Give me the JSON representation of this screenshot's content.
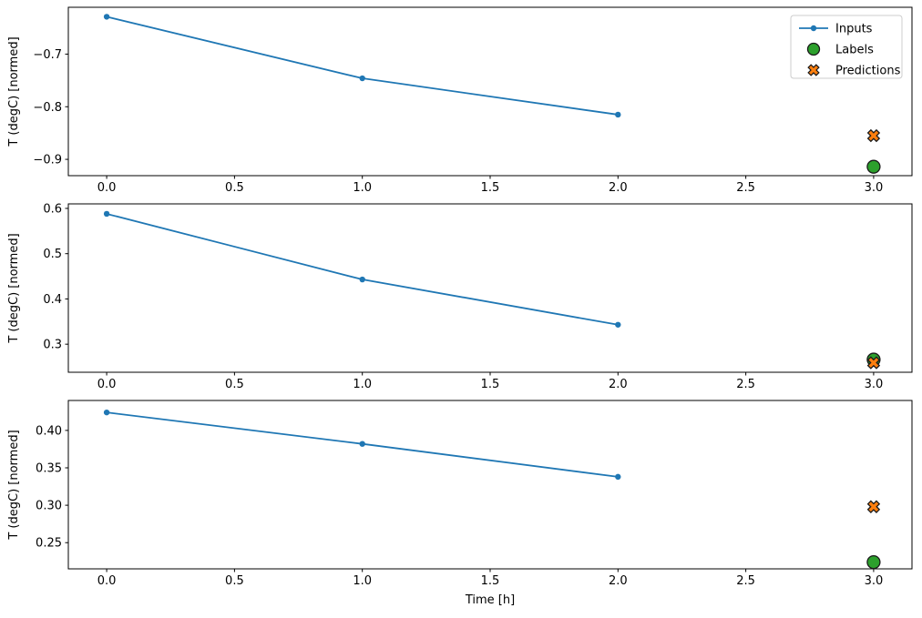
{
  "figure": {
    "background": "#ffffff",
    "xlabel": "Time [h]",
    "ylabel": "T (degC) [normed]"
  },
  "chart_data": [
    {
      "type": "line",
      "title": "",
      "xlabel": "",
      "ylabel": "T (degC) [normed]",
      "xlim": [
        -0.15,
        3.15
      ],
      "ylim": [
        -0.931,
        -0.611
      ],
      "xticks": [
        0.0,
        0.5,
        1.0,
        1.5,
        2.0,
        2.5,
        3.0
      ],
      "xticklabels": [
        "0.0",
        "0.5",
        "1.0",
        "1.5",
        "2.0",
        "2.5",
        "3.0"
      ],
      "yticks": [
        -0.7,
        -0.8,
        -0.9
      ],
      "yticklabels": [
        "−0.7",
        "−0.8",
        "−0.9"
      ],
      "grid": false,
      "legend": {
        "visible": true,
        "position": "upper right"
      },
      "series": [
        {
          "name": "Inputs",
          "kind": "line+marker",
          "marker": "dot",
          "color": "#1f77b4",
          "edge_color": null,
          "x": [
            0,
            1,
            2
          ],
          "y": [
            -0.629,
            -0.746,
            -0.815
          ]
        },
        {
          "name": "Labels",
          "kind": "scatter",
          "marker": "circle",
          "color": "#2ca02c",
          "edge_color": "#1a1a1a",
          "x": [
            3
          ],
          "y": [
            -0.914
          ]
        },
        {
          "name": "Predictions",
          "kind": "scatter",
          "marker": "X",
          "color": "#ff7f0e",
          "edge_color": "#1a1a1a",
          "x": [
            3
          ],
          "y": [
            -0.855
          ]
        }
      ]
    },
    {
      "type": "line",
      "title": "",
      "xlabel": "",
      "ylabel": "T (degC) [normed]",
      "xlim": [
        -0.15,
        3.15
      ],
      "ylim": [
        0.238,
        0.61
      ],
      "xticks": [
        0.0,
        0.5,
        1.0,
        1.5,
        2.0,
        2.5,
        3.0
      ],
      "xticklabels": [
        "0.0",
        "0.5",
        "1.0",
        "1.5",
        "2.0",
        "2.5",
        "3.0"
      ],
      "yticks": [
        0.3,
        0.4,
        0.5,
        0.6
      ],
      "yticklabels": [
        "0.3",
        "0.4",
        "0.5",
        "0.6"
      ],
      "grid": false,
      "legend": {
        "visible": false,
        "position": "upper right"
      },
      "series": [
        {
          "name": "Inputs",
          "kind": "line+marker",
          "marker": "dot",
          "color": "#1f77b4",
          "edge_color": null,
          "x": [
            0,
            1,
            2
          ],
          "y": [
            0.588,
            0.443,
            0.343
          ]
        },
        {
          "name": "Labels",
          "kind": "scatter",
          "marker": "circle",
          "color": "#2ca02c",
          "edge_color": "#1a1a1a",
          "x": [
            3
          ],
          "y": [
            0.266
          ]
        },
        {
          "name": "Predictions",
          "kind": "scatter",
          "marker": "X",
          "color": "#ff7f0e",
          "edge_color": "#1a1a1a",
          "x": [
            3
          ],
          "y": [
            0.259
          ]
        }
      ]
    },
    {
      "type": "line",
      "title": "",
      "xlabel": "Time [h]",
      "ylabel": "T (degC) [normed]",
      "xlim": [
        -0.15,
        3.15
      ],
      "ylim": [
        0.215,
        0.44
      ],
      "xticks": [
        0.0,
        0.5,
        1.0,
        1.5,
        2.0,
        2.5,
        3.0
      ],
      "xticklabels": [
        "0.0",
        "0.5",
        "1.0",
        "1.5",
        "2.0",
        "2.5",
        "3.0"
      ],
      "yticks": [
        0.25,
        0.3,
        0.35,
        0.4
      ],
      "yticklabels": [
        "0.25",
        "0.30",
        "0.35",
        "0.40"
      ],
      "grid": false,
      "legend": {
        "visible": false,
        "position": "upper right"
      },
      "series": [
        {
          "name": "Inputs",
          "kind": "line+marker",
          "marker": "dot",
          "color": "#1f77b4",
          "edge_color": null,
          "x": [
            0,
            1,
            2
          ],
          "y": [
            0.424,
            0.382,
            0.338
          ]
        },
        {
          "name": "Labels",
          "kind": "scatter",
          "marker": "circle",
          "color": "#2ca02c",
          "edge_color": "#1a1a1a",
          "x": [
            3
          ],
          "y": [
            0.224
          ]
        },
        {
          "name": "Predictions",
          "kind": "scatter",
          "marker": "X",
          "color": "#ff7f0e",
          "edge_color": "#1a1a1a",
          "x": [
            3
          ],
          "y": [
            0.298
          ]
        }
      ]
    }
  ],
  "style": {
    "spine_color": "#000000",
    "tick_color": "#000000",
    "legend_border_color": "#cccccc",
    "legend_background": "#ffffff"
  }
}
